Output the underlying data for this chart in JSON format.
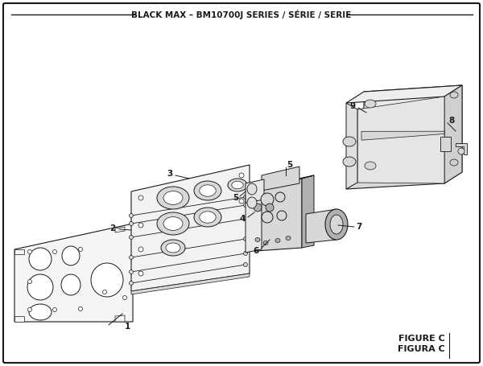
{
  "title": "BLACK MAX – BM10700J SERIES / SÉRIE / SERIE",
  "figure_label": "FIGURE C",
  "figura_label": "FIGURA C",
  "bg_color": "#ffffff",
  "line_color": "#1a1a1a",
  "part_fill": "#f0f0f0",
  "part_mid": "#d8d8d8",
  "part_dark": "#b0b0b0"
}
